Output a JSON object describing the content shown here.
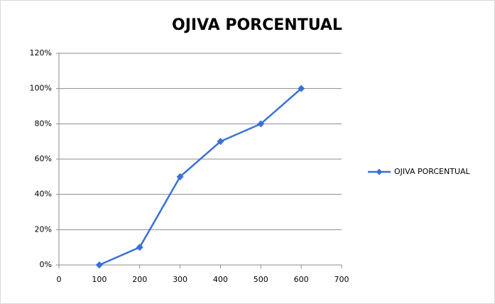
{
  "chart_data": {
    "type": "line",
    "title": "OJIVA PORCENTUAL",
    "x": [
      100,
      200,
      300,
      400,
      500,
      600
    ],
    "series": [
      {
        "name": "OJIVA PORCENTUAL",
        "color": "#3a6fd8",
        "values": [
          0,
          10,
          50,
          70,
          80,
          100
        ]
      }
    ],
    "xlim": [
      0,
      700
    ],
    "xticks": [
      0,
      100,
      200,
      300,
      400,
      500,
      600,
      700
    ],
    "ylim": [
      0,
      120
    ],
    "yticks": [
      {
        "value": 0,
        "label": "0%"
      },
      {
        "value": 20,
        "label": "20%"
      },
      {
        "value": 40,
        "label": "40%"
      },
      {
        "value": 60,
        "label": "60%"
      },
      {
        "value": 80,
        "label": "80%"
      },
      {
        "value": 100,
        "label": "100%"
      },
      {
        "value": 120,
        "label": "120%"
      }
    ],
    "grid": true,
    "legend": "right"
  }
}
